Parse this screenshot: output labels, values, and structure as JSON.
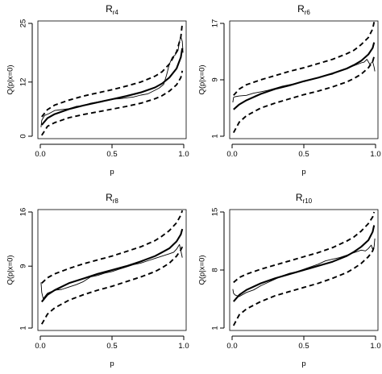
{
  "chart_data": [
    {
      "type": "line",
      "title": "R",
      "title_sub": "r4",
      "xlabel": "p",
      "ylabel": "Q(p|x=0)",
      "xlim": [
        0,
        1
      ],
      "ylim": [
        0,
        25
      ],
      "xticks": [
        "0.0",
        "0.5",
        "1.0"
      ],
      "yticks": [
        "0",
        "12",
        "25"
      ],
      "series": [
        {
          "style": "solid-thick",
          "x": [
            0.01,
            0.05,
            0.1,
            0.2,
            0.3,
            0.4,
            0.5,
            0.6,
            0.7,
            0.8,
            0.85,
            0.9,
            0.95,
            0.98,
            0.99
          ],
          "y": [
            2.5,
            4.0,
            4.9,
            6.0,
            6.8,
            7.5,
            8.2,
            8.9,
            9.7,
            10.8,
            11.7,
            13.0,
            15.0,
            17.5,
            19.5
          ]
        },
        {
          "style": "dashed",
          "x": [
            0.01,
            0.05,
            0.1,
            0.2,
            0.3,
            0.4,
            0.5,
            0.6,
            0.7,
            0.8,
            0.85,
            0.9,
            0.95,
            0.98,
            0.99
          ],
          "y": [
            4.3,
            5.9,
            6.9,
            8.0,
            8.9,
            9.6,
            10.3,
            11.1,
            12.0,
            13.3,
            14.3,
            16.0,
            18.7,
            22.0,
            25.0
          ]
        },
        {
          "style": "dashed",
          "x": [
            0.01,
            0.05,
            0.1,
            0.2,
            0.3,
            0.4,
            0.5,
            0.6,
            0.7,
            0.8,
            0.85,
            0.9,
            0.95,
            0.98,
            0.99
          ],
          "y": [
            0.2,
            2.2,
            3.0,
            4.1,
            4.8,
            5.4,
            6.0,
            6.6,
            7.3,
            8.3,
            9.0,
            10.0,
            11.4,
            13.0,
            14.5
          ]
        },
        {
          "style": "solid-thin",
          "x": [
            0.005,
            0.01,
            0.03,
            0.06,
            0.1,
            0.15,
            0.2,
            0.25,
            0.3,
            0.35,
            0.4,
            0.45,
            0.5,
            0.55,
            0.6,
            0.65,
            0.7,
            0.75,
            0.8,
            0.83,
            0.86,
            0.88,
            0.9,
            0.92,
            0.94,
            0.96,
            0.97,
            0.98,
            0.99,
            0.995
          ],
          "y": [
            2.0,
            3.5,
            4.6,
            5.0,
            5.7,
            5.9,
            6.1,
            6.6,
            6.8,
            7.3,
            7.6,
            7.9,
            8.2,
            8.3,
            8.5,
            8.7,
            9.1,
            9.4,
            10.2,
            10.7,
            11.5,
            13.5,
            16.0,
            17.5,
            18.0,
            19.0,
            21.0,
            22.0,
            21.0,
            18.5
          ]
        }
      ]
    },
    {
      "type": "line",
      "title": "R",
      "title_sub": "r6",
      "xlabel": "p",
      "ylabel": "Q(p|x=0)",
      "xlim": [
        0,
        1
      ],
      "ylim": [
        1,
        17
      ],
      "xticks": [
        "0.0",
        "0.5",
        "1.0"
      ],
      "yticks": [
        "1",
        "9",
        "17"
      ],
      "series": [
        {
          "style": "solid-thick",
          "x": [
            0.01,
            0.05,
            0.1,
            0.2,
            0.3,
            0.4,
            0.5,
            0.6,
            0.7,
            0.8,
            0.85,
            0.9,
            0.95,
            0.98,
            0.99
          ],
          "y": [
            4.8,
            5.5,
            6.1,
            7.0,
            7.7,
            8.2,
            8.8,
            9.3,
            9.9,
            10.6,
            11.1,
            11.7,
            12.6,
            13.5,
            14.3
          ]
        },
        {
          "style": "dashed",
          "x": [
            0.01,
            0.05,
            0.1,
            0.2,
            0.3,
            0.4,
            0.5,
            0.6,
            0.7,
            0.8,
            0.85,
            0.9,
            0.95,
            0.98,
            0.99
          ],
          "y": [
            6.8,
            7.7,
            8.3,
            9.0,
            9.6,
            10.2,
            10.7,
            11.3,
            11.9,
            12.7,
            13.2,
            14.0,
            15.0,
            16.2,
            17.2
          ]
        },
        {
          "style": "dashed",
          "x": [
            0.01,
            0.05,
            0.1,
            0.2,
            0.3,
            0.4,
            0.5,
            0.6,
            0.7,
            0.8,
            0.85,
            0.9,
            0.95,
            0.98,
            0.99
          ],
          "y": [
            1.5,
            3.0,
            3.9,
            5.0,
            5.7,
            6.3,
            6.9,
            7.4,
            8.0,
            8.7,
            9.2,
            9.8,
            10.7,
            11.6,
            12.3
          ]
        },
        {
          "style": "solid-thin",
          "x": [
            0.005,
            0.01,
            0.02,
            0.05,
            0.1,
            0.15,
            0.2,
            0.25,
            0.3,
            0.35,
            0.4,
            0.45,
            0.5,
            0.55,
            0.6,
            0.65,
            0.7,
            0.75,
            0.8,
            0.85,
            0.9,
            0.92,
            0.94,
            0.96,
            0.98,
            0.99,
            0.995
          ],
          "y": [
            5.8,
            6.5,
            6.6,
            6.7,
            6.8,
            7.1,
            7.3,
            7.5,
            7.8,
            8.1,
            8.3,
            8.5,
            8.8,
            9.0,
            9.3,
            9.6,
            9.8,
            10.3,
            10.6,
            11.0,
            11.4,
            11.5,
            11.9,
            11.2,
            11.6,
            10.8,
            10.2
          ]
        }
      ]
    },
    {
      "type": "line",
      "title": "R",
      "title_sub": "r8",
      "xlabel": "p",
      "ylabel": "Q(p|x=0)",
      "xlim": [
        0,
        1
      ],
      "ylim": [
        1,
        16
      ],
      "xticks": [
        "0.0",
        "0.5",
        "1.0"
      ],
      "yticks": [
        "1",
        "9",
        "16"
      ],
      "series": [
        {
          "style": "solid-thick",
          "x": [
            0.01,
            0.05,
            0.1,
            0.2,
            0.3,
            0.4,
            0.5,
            0.6,
            0.7,
            0.8,
            0.85,
            0.9,
            0.95,
            0.98,
            0.99
          ],
          "y": [
            4.4,
            5.3,
            5.9,
            6.8,
            7.4,
            8.0,
            8.5,
            9.0,
            9.6,
            10.3,
            10.8,
            11.3,
            12.2,
            13.1,
            13.8
          ]
        },
        {
          "style": "dashed",
          "x": [
            0.01,
            0.05,
            0.1,
            0.2,
            0.3,
            0.4,
            0.5,
            0.6,
            0.7,
            0.8,
            0.85,
            0.9,
            0.95,
            0.98,
            0.99
          ],
          "y": [
            6.8,
            7.5,
            8.0,
            8.7,
            9.3,
            9.8,
            10.3,
            10.9,
            11.5,
            12.3,
            12.9,
            13.6,
            14.6,
            15.6,
            16.2
          ]
        },
        {
          "style": "dashed",
          "x": [
            0.01,
            0.05,
            0.1,
            0.2,
            0.3,
            0.4,
            0.5,
            0.6,
            0.7,
            0.8,
            0.85,
            0.9,
            0.95,
            0.98,
            0.99
          ],
          "y": [
            1.5,
            2.8,
            3.6,
            4.6,
            5.3,
            5.9,
            6.4,
            7.0,
            7.6,
            8.3,
            8.8,
            9.4,
            10.3,
            11.1,
            11.5
          ]
        },
        {
          "style": "solid-thin",
          "x": [
            0.005,
            0.01,
            0.02,
            0.05,
            0.1,
            0.15,
            0.2,
            0.25,
            0.3,
            0.35,
            0.4,
            0.45,
            0.5,
            0.55,
            0.6,
            0.65,
            0.7,
            0.75,
            0.8,
            0.85,
            0.9,
            0.93,
            0.95,
            0.97,
            0.98,
            0.99
          ],
          "y": [
            6.9,
            5.6,
            4.8,
            5.5,
            5.9,
            6.0,
            6.3,
            6.6,
            7.0,
            7.6,
            7.8,
            8.1,
            8.3,
            8.6,
            8.9,
            9.2,
            9.4,
            9.7,
            10.0,
            10.3,
            10.6,
            10.8,
            11.2,
            11.8,
            11.0,
            10.1
          ]
        }
      ]
    },
    {
      "type": "line",
      "title": "R",
      "title_sub": "r10",
      "xlabel": "p",
      "ylabel": "Q(p|x=0)",
      "xlim": [
        0,
        1
      ],
      "ylim": [
        1,
        15
      ],
      "xticks": [
        "0.0",
        "0.5",
        "1.0"
      ],
      "yticks": [
        "1",
        "8",
        "15"
      ],
      "series": [
        {
          "style": "solid-thick",
          "x": [
            0.01,
            0.05,
            0.1,
            0.2,
            0.3,
            0.4,
            0.5,
            0.6,
            0.7,
            0.8,
            0.85,
            0.9,
            0.95,
            0.98,
            0.99
          ],
          "y": [
            4.2,
            5.0,
            5.6,
            6.4,
            7.0,
            7.5,
            8.0,
            8.5,
            9.0,
            9.7,
            10.2,
            10.8,
            11.6,
            12.6,
            13.4
          ]
        },
        {
          "style": "dashed",
          "x": [
            0.01,
            0.05,
            0.1,
            0.2,
            0.3,
            0.4,
            0.5,
            0.6,
            0.7,
            0.8,
            0.85,
            0.9,
            0.95,
            0.98,
            0.99
          ],
          "y": [
            6.5,
            7.1,
            7.5,
            8.1,
            8.6,
            9.1,
            9.6,
            10.1,
            10.7,
            11.5,
            12.0,
            12.7,
            13.6,
            14.4,
            15.0
          ]
        },
        {
          "style": "dashed",
          "x": [
            0.01,
            0.05,
            0.1,
            0.2,
            0.3,
            0.4,
            0.5,
            0.6,
            0.7,
            0.8,
            0.85,
            0.9,
            0.95,
            0.98,
            0.99
          ],
          "y": [
            1.3,
            2.6,
            3.3,
            4.2,
            4.9,
            5.4,
            5.9,
            6.4,
            7.0,
            7.7,
            8.2,
            8.8,
            9.6,
            10.3,
            10.8
          ]
        },
        {
          "style": "solid-thin",
          "x": [
            0.005,
            0.01,
            0.02,
            0.05,
            0.1,
            0.15,
            0.2,
            0.25,
            0.3,
            0.35,
            0.4,
            0.45,
            0.5,
            0.55,
            0.6,
            0.65,
            0.7,
            0.75,
            0.8,
            0.85,
            0.9,
            0.93,
            0.95,
            0.97,
            0.98,
            0.99,
            0.995
          ],
          "y": [
            5.7,
            5.2,
            5.0,
            4.8,
            5.3,
            5.6,
            6.1,
            6.5,
            6.9,
            7.3,
            7.6,
            7.8,
            8.1,
            8.4,
            8.7,
            9.1,
            9.3,
            9.5,
            9.8,
            10.1,
            10.4,
            10.3,
            10.6,
            11.0,
            10.5,
            10.8,
            11.8
          ]
        }
      ]
    }
  ]
}
